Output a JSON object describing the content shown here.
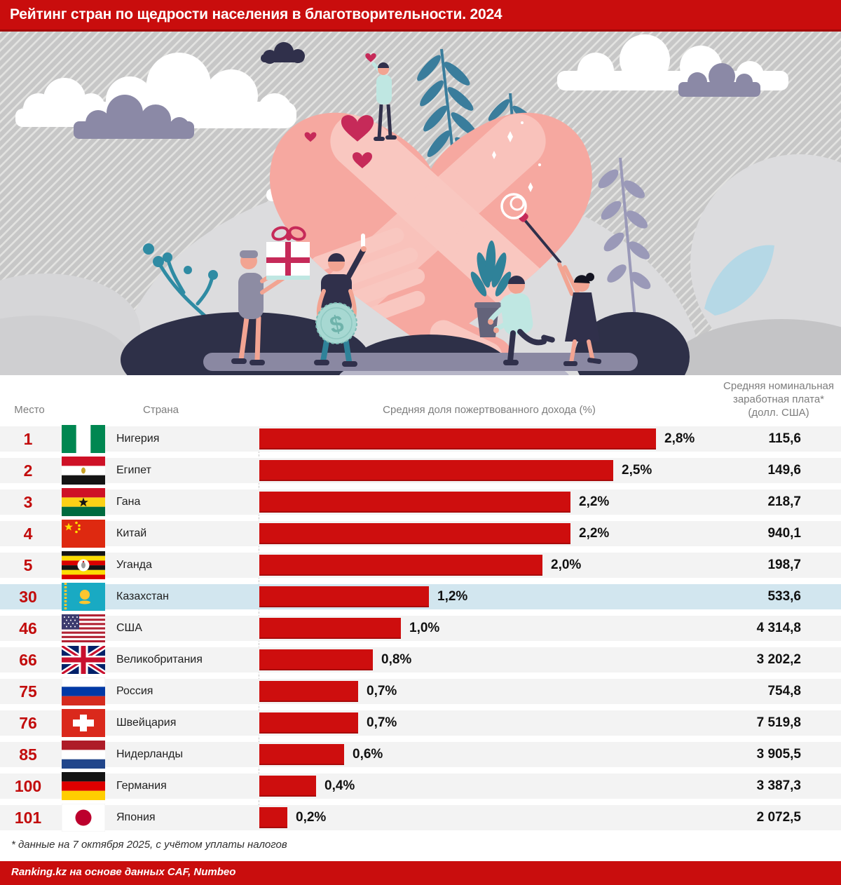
{
  "header": {
    "title": "Рейтинг стран по щедрости населения в благотворительности. 2024"
  },
  "table": {
    "columns": {
      "place": "Место",
      "country": "Страна",
      "share": "Средняя доля пожертвованного дохода (%)",
      "salary_line1": "Средняя номинальная",
      "salary_line2": "заработная плата*",
      "salary_line3": "(долл. США)"
    },
    "rows": [
      {
        "rank": "1",
        "country": "Нигерия",
        "flag": "nigeria",
        "share_value": 2.8,
        "share_label": "2,8%",
        "salary": "115,6",
        "highlight": false
      },
      {
        "rank": "2",
        "country": "Египет",
        "flag": "egypt",
        "share_value": 2.5,
        "share_label": "2,5%",
        "salary": "149,6",
        "highlight": false
      },
      {
        "rank": "3",
        "country": "Гана",
        "flag": "ghana",
        "share_value": 2.2,
        "share_label": "2,2%",
        "salary": "218,7",
        "highlight": false
      },
      {
        "rank": "4",
        "country": "Китай",
        "flag": "china",
        "share_value": 2.2,
        "share_label": "2,2%",
        "salary": "940,1",
        "highlight": false
      },
      {
        "rank": "5",
        "country": "Уганда",
        "flag": "uganda",
        "share_value": 2.0,
        "share_label": "2,0%",
        "salary": "198,7",
        "highlight": false
      },
      {
        "rank": "30",
        "country": "Казахстан",
        "flag": "kazakhstan",
        "share_value": 1.2,
        "share_label": "1,2%",
        "salary": "533,6",
        "highlight": true
      },
      {
        "rank": "46",
        "country": "США",
        "flag": "usa",
        "share_value": 1.0,
        "share_label": "1,0%",
        "salary": "4 314,8",
        "highlight": false
      },
      {
        "rank": "66",
        "country": "Великобритания",
        "flag": "uk",
        "share_value": 0.8,
        "share_label": "0,8%",
        "salary": "3 202,2",
        "highlight": false
      },
      {
        "rank": "75",
        "country": "Россия",
        "flag": "russia",
        "share_value": 0.7,
        "share_label": "0,7%",
        "salary": "754,8",
        "highlight": false
      },
      {
        "rank": "76",
        "country": "Швейцария",
        "flag": "switzerland",
        "share_value": 0.7,
        "share_label": "0,7%",
        "salary": "7 519,8",
        "highlight": false
      },
      {
        "rank": "85",
        "country": "Нидерланды",
        "flag": "netherlands",
        "share_value": 0.6,
        "share_label": "0,6%",
        "salary": "3 905,5",
        "highlight": false
      },
      {
        "rank": "100",
        "country": "Германия",
        "flag": "germany",
        "share_value": 0.4,
        "share_label": "0,4%",
        "salary": "3 387,3",
        "highlight": false
      },
      {
        "rank": "101",
        "country": "Япония",
        "flag": "japan",
        "share_value": 0.2,
        "share_label": "0,2%",
        "salary": "2 072,5",
        "highlight": false
      }
    ]
  },
  "chart_data": {
    "type": "bar",
    "title": "Рейтинг стран по щедрости населения в благотворительности. 2024",
    "categories": [
      "Нигерия",
      "Египет",
      "Гана",
      "Китай",
      "Уганда",
      "Казахстан",
      "США",
      "Великобритания",
      "Россия",
      "Швейцария",
      "Нидерланды",
      "Германия",
      "Япония"
    ],
    "ranks": [
      1,
      2,
      3,
      4,
      5,
      30,
      46,
      66,
      75,
      76,
      85,
      100,
      101
    ],
    "series": [
      {
        "name": "Средняя доля пожертвованного дохода (%)",
        "values": [
          2.8,
          2.5,
          2.2,
          2.2,
          2.0,
          1.2,
          1.0,
          0.8,
          0.7,
          0.7,
          0.6,
          0.4,
          0.2
        ]
      },
      {
        "name": "Средняя номинальная заработная плата (долл. США)",
        "values": [
          115.6,
          149.6,
          218.7,
          940.1,
          198.7,
          533.6,
          4314.8,
          3202.2,
          754.8,
          7519.8,
          3905.5,
          3387.3,
          2072.5
        ]
      }
    ],
    "highlighted_category": "Казахстан",
    "xlabel": "",
    "ylabel": "",
    "xlim": [
      0,
      2.8
    ],
    "grid": false,
    "legend_position": "none",
    "orientation": "horizontal"
  },
  "footnote": "* данные на 7 октября 2025, с учётом уплаты налогов",
  "source": "Ranking.kz на основе данных CAF, Numbeo",
  "colors": {
    "accent_red": "#c90d0d",
    "bar_red": "#ce0e0e",
    "rank_red": "#c20c0c",
    "highlight_row": "#d2e6ef",
    "row_band": "#f3f3f3",
    "heart_pink": "#f6a8a0",
    "heart_crimson": "#c62a59"
  }
}
